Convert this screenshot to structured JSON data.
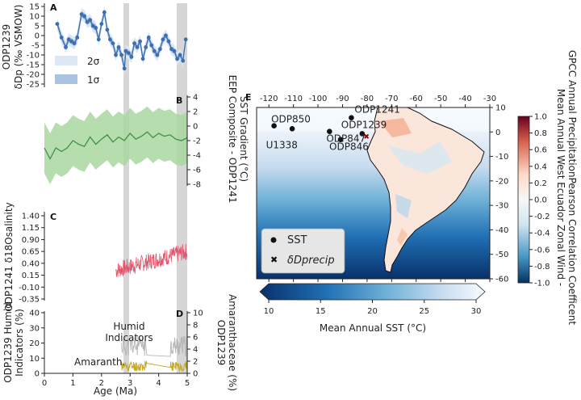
{
  "chart_data": [
    {
      "panel": "A",
      "type": "line",
      "ylabel_line1": "ODP1239",
      "ylabel_line2": "δDp (‰ VSMOW)",
      "xlim": [
        0,
        5
      ],
      "ylim": [
        -25,
        15
      ],
      "yticks": [
        "15",
        "10",
        "5",
        "0",
        "-5",
        "-10",
        "-15",
        "-20",
        "-25"
      ],
      "legend": [
        "2σ",
        "1σ"
      ],
      "colors": {
        "line": "#3d6fb0",
        "band2": "#dce8f4",
        "band1": "#a9c3e1"
      },
      "series": [
        {
          "x": [
            0.45,
            0.6,
            0.75,
            0.85,
            0.95,
            1.05,
            1.15,
            1.3,
            1.4,
            1.5,
            1.6,
            1.7,
            1.8,
            1.9,
            2.0,
            2.1,
            2.2,
            2.3,
            2.4,
            2.5,
            2.6,
            2.7,
            2.8,
            2.85,
            2.95,
            3.05,
            3.15,
            3.25,
            3.35,
            3.45,
            3.55,
            3.65,
            3.75,
            3.85,
            3.95,
            4.05,
            4.15,
            4.25,
            4.35,
            4.45,
            4.55,
            4.65,
            4.75,
            4.85,
            4.95
          ],
          "y": [
            6,
            -1,
            -6,
            -2,
            -3,
            -4,
            -1,
            11,
            10,
            7,
            8,
            5,
            4,
            -2,
            6,
            12,
            3,
            -2,
            -4,
            -10,
            -6,
            -10,
            -17,
            -8,
            -9,
            -11,
            -4,
            -6,
            -3,
            -12,
            -6,
            -1,
            -5,
            -8,
            -10,
            -7,
            -2,
            0,
            -3,
            -7,
            -8,
            -12,
            -10,
            -13,
            -2
          ]
        }
      ]
    },
    {
      "panel": "B",
      "type": "area",
      "ylabel_line1": "EEP Composite - ODP1241",
      "ylabel_line2": "SST Gradient (°C)",
      "axis_side": "right",
      "xlim": [
        0,
        5
      ],
      "ylim": [
        -8,
        4
      ],
      "yticks": [
        "4",
        "2",
        "0",
        "-2",
        "-4",
        "-6",
        "-8"
      ],
      "colors": {
        "line": "#3f9143",
        "band": "#a9d7a0"
      },
      "series": [
        {
          "x": [
            0.0,
            0.2,
            0.4,
            0.6,
            0.8,
            1.0,
            1.2,
            1.4,
            1.6,
            1.8,
            2.0,
            2.2,
            2.4,
            2.6,
            2.8,
            3.0,
            3.2,
            3.4,
            3.6,
            3.8,
            4.0,
            4.2,
            4.4,
            4.6,
            4.8,
            5.0
          ],
          "y": [
            -3,
            -4.5,
            -3,
            -3.5,
            -3,
            -2,
            -2.5,
            -2.8,
            -1.5,
            -2.5,
            -1.8,
            -1.2,
            -2.2,
            -1.5,
            -2,
            -1,
            -1.8,
            -1.4,
            -0.8,
            -1.6,
            -1,
            -1.4,
            -1.2,
            -1.8,
            -2,
            -1.6
          ],
          "band_width": 3.5
        }
      ]
    },
    {
      "panel": "C",
      "type": "line",
      "ylabel": "ODP1241 δ18Osalinity",
      "xlim": [
        0,
        5
      ],
      "ylim": [
        -0.35,
        1.4
      ],
      "yticks": [
        "1.40",
        "1.15",
        "0.90",
        "0.65",
        "0.40",
        "0.15",
        "-0.10",
        "-0.35"
      ],
      "colors": {
        "line": "#e0566d"
      },
      "x_range": [
        2.5,
        5.0
      ],
      "y_center_start": 0.25,
      "y_center_end": 0.65,
      "y_noise": 0.18
    },
    {
      "panel": "D",
      "type": "line",
      "ylabel_left_line1": "ODP1239 Humid",
      "ylabel_left_line2": "Indicators (%)",
      "ylabel_right_line1": "ODP1239",
      "ylabel_right_line2": "Amaranthaceae (%)",
      "xlabel": "Age (Ma)",
      "xlim": [
        0,
        5
      ],
      "ylim_left": [
        0,
        40
      ],
      "ylim_right": [
        0,
        10
      ],
      "yticks_left": [
        "40",
        "30",
        "20",
        "10",
        "0"
      ],
      "yticks_right": [
        "10",
        "8",
        "6",
        "4",
        "2",
        "0"
      ],
      "xticks": [
        "0",
        "1",
        "2",
        "3",
        "4",
        "5"
      ],
      "annotations": [
        "Humid Indicators",
        "Amaranth."
      ],
      "annotation_humid_line1": "Humid",
      "annotation_humid_line2": "Indicators",
      "colors": {
        "humid": "#b5b5b5",
        "amaranth": "#c8aa22"
      },
      "x_range": [
        2.7,
        5.0
      ],
      "humid_center": 18,
      "amaranth_center": 1.0
    },
    {
      "panel": "E",
      "type": "heatmap",
      "xlim": [
        -125,
        -30
      ],
      "ylim": [
        -60,
        10
      ],
      "xticks": [
        "-120",
        "-110",
        "-100",
        "-90",
        "-80",
        "-70",
        "-60",
        "-50",
        "-40",
        "-30"
      ],
      "yticks": [
        "10",
        "0",
        "-10",
        "-20",
        "-30",
        "-40",
        "-50",
        "-60"
      ],
      "sites": [
        {
          "name": "ODP1239",
          "lon": -82,
          "lat": -0.7
        },
        {
          "name": "ODP846",
          "lon": -90.8,
          "lat": -3.1
        },
        {
          "name": "U1338",
          "lon": -117.9,
          "lat": 2.5
        },
        {
          "name": "ODP850",
          "lon": -110.5,
          "lat": 1.3
        },
        {
          "name": "ODP847",
          "lon": -95.3,
          "lat": 0.2
        },
        {
          "name": "ODP1241",
          "lon": -86.4,
          "lat": 5.8
        }
      ],
      "legend": [
        "SST",
        "δDprecip"
      ],
      "colorbar_bottom": {
        "label": "Mean Annual SST (°C)",
        "ticks": [
          "10",
          "15",
          "20",
          "25",
          "30"
        ]
      },
      "colorbar_right": {
        "label_line1": "Mean Annual West Ecuador Zonal Wind -",
        "label_line2": "GPCC Annual PrecipitationPearson Correlation Coefficent",
        "ticks": [
          "1.0",
          "0.8",
          "0.6",
          "0.4",
          "0.2",
          "0.0",
          "-0.2",
          "-0.4",
          "-0.6",
          "-0.8",
          "-1.0"
        ]
      }
    }
  ]
}
